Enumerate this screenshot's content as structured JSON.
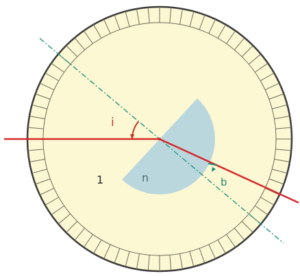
{
  "labels": {
    "incidence_angle": "i",
    "refraction_angle": "b",
    "index_outside": "1",
    "index_lens": "n"
  },
  "colors": {
    "disc_fill": "#fcf8d3",
    "disc_outline": "#3a3a3a",
    "tick_stroke": "#6b6b5a",
    "ray": "#d42a2a",
    "normal_line": "#2f9a86",
    "lens_fill": "#b4d3df",
    "incidence_angle_color": "#c0392b",
    "refraction_angle_color": "#1f8a6d",
    "text": "#2a2a2a"
  }
}
